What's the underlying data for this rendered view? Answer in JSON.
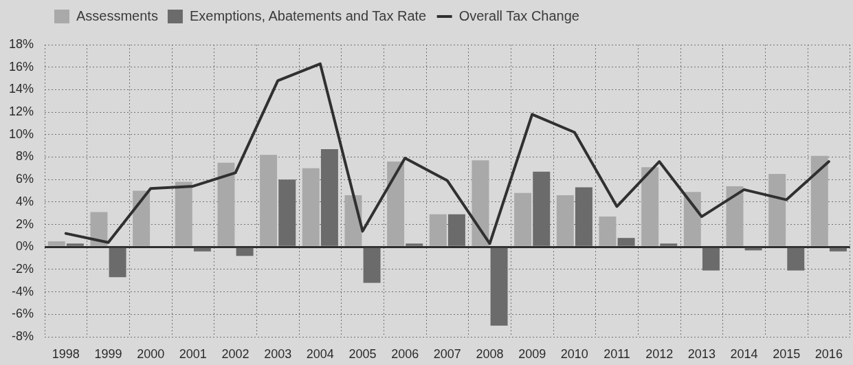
{
  "chart_data": {
    "type": "bar",
    "categories": [
      "1998",
      "1999",
      "2000",
      "2001",
      "2002",
      "2003",
      "2004",
      "2005",
      "2006",
      "2007",
      "2008",
      "2009",
      "2010",
      "2011",
      "2012",
      "2013",
      "2014",
      "2015",
      "2016"
    ],
    "series": [
      {
        "name": "Assessments",
        "color": "#a9a9a9",
        "values": [
          0.5,
          3.1,
          5.0,
          5.8,
          7.5,
          8.2,
          7.0,
          4.6,
          7.6,
          2.9,
          7.7,
          4.8,
          4.6,
          2.7,
          7.1,
          4.9,
          5.4,
          6.5,
          8.1
        ]
      },
      {
        "name": "Exemptions, Abatements and Tax Rate",
        "color": "#6b6b6b",
        "values": [
          0.3,
          -2.7,
          0,
          -0.4,
          -0.8,
          6.0,
          8.7,
          -3.2,
          0.3,
          2.9,
          -7.0,
          6.7,
          5.3,
          0.8,
          0.3,
          -2.1,
          -0.3,
          -2.1,
          -0.4
        ]
      },
      {
        "name": "Overall Tax Change",
        "type": "line",
        "color": "#303030",
        "values": [
          1.2,
          0.4,
          5.2,
          5.4,
          6.6,
          14.8,
          16.3,
          1.4,
          7.9,
          5.9,
          0.3,
          11.8,
          10.2,
          3.6,
          7.6,
          2.7,
          5.1,
          4.2,
          7.6
        ]
      }
    ],
    "ylim": [
      -8,
      18
    ],
    "yticks": [
      {
        "value": -8,
        "label": "-8%"
      },
      {
        "value": -6,
        "label": "-6%"
      },
      {
        "value": -4,
        "label": "-4%"
      },
      {
        "value": -2,
        "label": "-2%"
      },
      {
        "value": 0,
        "label": "0%"
      },
      {
        "value": 2,
        "label": "2%"
      },
      {
        "value": 4,
        "label": "4%"
      },
      {
        "value": 6,
        "label": "6%"
      },
      {
        "value": 8,
        "label": "8%"
      },
      {
        "value": 10,
        "label": "10%"
      },
      {
        "value": 12,
        "label": "12%"
      },
      {
        "value": 14,
        "label": "14%"
      },
      {
        "value": 16,
        "label": "16%"
      },
      {
        "value": 18,
        "label": "18%"
      }
    ],
    "grid": true,
    "legend": "top left",
    "marker": "none",
    "line_style": "solid"
  }
}
